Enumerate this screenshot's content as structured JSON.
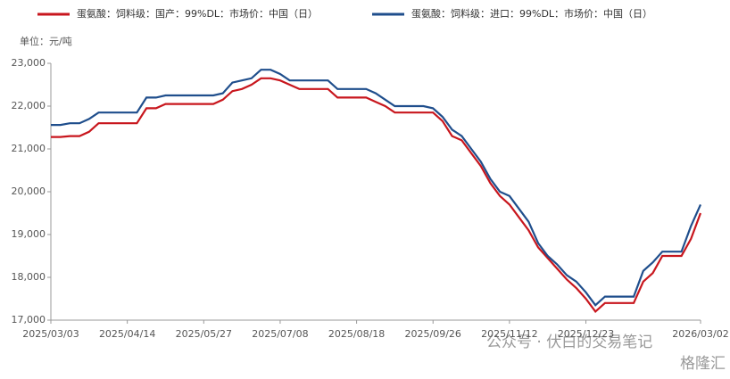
{
  "chart_data": {
    "type": "line",
    "unit_label": "单位：元/吨",
    "categories": [
      "2025/03/03",
      null,
      null,
      null,
      null,
      null,
      null,
      null,
      "2025/04/14",
      null,
      null,
      null,
      null,
      null,
      null,
      null,
      "2025/05/27",
      null,
      null,
      null,
      null,
      null,
      null,
      null,
      "2025/07/08",
      null,
      null,
      null,
      null,
      null,
      null,
      null,
      "2025/08/18",
      null,
      null,
      null,
      null,
      null,
      null,
      null,
      "2025/09/26",
      null,
      null,
      null,
      null,
      null,
      null,
      null,
      "2025/11/12",
      null,
      null,
      null,
      null,
      null,
      null,
      null,
      "2025/12/23",
      null,
      null,
      null,
      null,
      null,
      null,
      null,
      null,
      null,
      null,
      null,
      "2026/03/02"
    ],
    "series": [
      {
        "name": "蛋氨酸：饲料级：国产：99%DL：市场价：中国（日）",
        "color": "#c8161d",
        "values": [
          21280,
          21280,
          21300,
          21300,
          21400,
          21600,
          21600,
          21600,
          21600,
          21600,
          21950,
          21950,
          22050,
          22050,
          22050,
          22050,
          22050,
          22050,
          22150,
          22350,
          22400,
          22500,
          22650,
          22650,
          22600,
          22500,
          22400,
          22400,
          22400,
          22400,
          22200,
          22200,
          22200,
          22200,
          22100,
          22000,
          21850,
          21850,
          21850,
          21850,
          21850,
          21650,
          21300,
          21200,
          20900,
          20600,
          20200,
          19900,
          19700,
          19400,
          19100,
          18700,
          18450,
          18200,
          17950,
          17750,
          17500,
          17200,
          17400,
          17400,
          17400,
          17400,
          17900,
          18100,
          18500,
          18500,
          18500,
          18900,
          19500
        ]
      },
      {
        "name": "蛋氨酸：饲料级：进口：99%DL：市场价：中国（日）",
        "color": "#1f4e8c",
        "values": [
          21560,
          21560,
          21600,
          21600,
          21700,
          21850,
          21850,
          21850,
          21850,
          21850,
          22200,
          22200,
          22250,
          22250,
          22250,
          22250,
          22250,
          22250,
          22300,
          22550,
          22600,
          22650,
          22850,
          22850,
          22750,
          22600,
          22600,
          22600,
          22600,
          22600,
          22400,
          22400,
          22400,
          22400,
          22300,
          22150,
          22000,
          22000,
          22000,
          22000,
          21950,
          21750,
          21450,
          21300,
          21000,
          20700,
          20300,
          20000,
          19900,
          19600,
          19300,
          18800,
          18500,
          18300,
          18050,
          17900,
          17650,
          17350,
          17550,
          17550,
          17550,
          17550,
          18150,
          18350,
          18600,
          18600,
          18600,
          19200,
          19700
        ]
      }
    ],
    "ylim": [
      17000,
      23000
    ],
    "yticks": [
      {
        "value": 17000,
        "label": "17,000"
      },
      {
        "value": 18000,
        "label": "18,000"
      },
      {
        "value": 19000,
        "label": "19,000"
      },
      {
        "value": 20000,
        "label": "20,000"
      },
      {
        "value": 21000,
        "label": "21,000"
      },
      {
        "value": 22000,
        "label": "22,000"
      },
      {
        "value": 23000,
        "label": "23,000"
      }
    ],
    "watermarks": [
      "公众号 · 伏白的交易笔记",
      "格隆汇"
    ]
  }
}
